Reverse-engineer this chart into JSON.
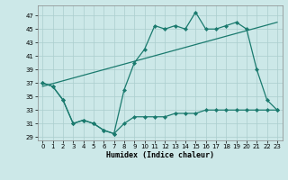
{
  "title": "",
  "xlabel": "Humidex (Indice chaleur)",
  "bg_color": "#cce8e8",
  "line_color": "#1a7a6e",
  "grid_color": "#aacece",
  "xlim": [
    -0.5,
    23.5
  ],
  "ylim": [
    28.5,
    48.5
  ],
  "yticks": [
    29,
    31,
    33,
    35,
    37,
    39,
    41,
    43,
    45,
    47
  ],
  "xticks": [
    0,
    1,
    2,
    3,
    4,
    5,
    6,
    7,
    8,
    9,
    10,
    11,
    12,
    13,
    14,
    15,
    16,
    17,
    18,
    19,
    20,
    21,
    22,
    23
  ],
  "line1_x": [
    0,
    1,
    2,
    3,
    4,
    5,
    6,
    7,
    8,
    9,
    10,
    11,
    12,
    13,
    14,
    15,
    16,
    17,
    18,
    19,
    20,
    21,
    22,
    23
  ],
  "line1_y": [
    37.0,
    36.5,
    34.5,
    31.0,
    31.5,
    31.0,
    30.0,
    29.5,
    31.0,
    32.0,
    32.0,
    32.0,
    32.0,
    32.5,
    32.5,
    32.5,
    33.0,
    33.0,
    33.0,
    33.0,
    33.0,
    33.0,
    33.0,
    33.0
  ],
  "line2_x": [
    0,
    23
  ],
  "line2_y": [
    36.5,
    46.0
  ],
  "line3_x": [
    0,
    1,
    2,
    3,
    4,
    5,
    6,
    7,
    8,
    9,
    10,
    11,
    12,
    13,
    14,
    15,
    16,
    17,
    18,
    19,
    20,
    21,
    22,
    23
  ],
  "line3_y": [
    37.0,
    36.5,
    34.5,
    31.0,
    31.5,
    31.0,
    30.0,
    29.5,
    36.0,
    40.0,
    42.0,
    45.5,
    45.0,
    45.5,
    45.0,
    47.5,
    45.0,
    45.0,
    45.5,
    46.0,
    45.0,
    39.0,
    34.5,
    33.0
  ],
  "figw": 3.2,
  "figh": 2.0,
  "dpi": 100
}
